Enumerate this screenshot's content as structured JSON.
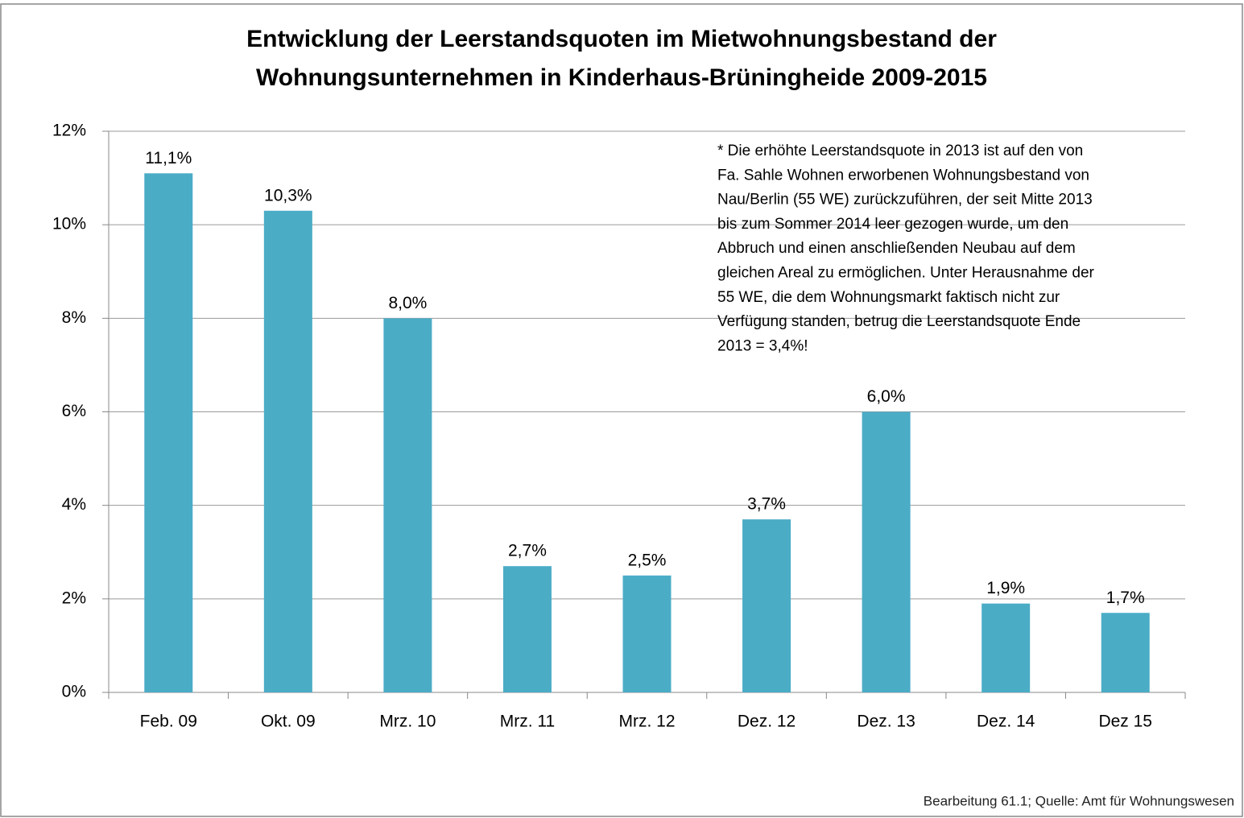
{
  "chart_data": {
    "type": "bar",
    "title": [
      "Entwicklung der Leerstandsquoten im Mietwohnungsbestand der",
      "Wohnungsunternehmen in Kinderhaus-Brüningheide 2009-2015"
    ],
    "categories": [
      "Feb. 09",
      "Okt. 09",
      "Mrz. 10",
      "Mrz. 11",
      "Mrz. 12",
      "Dez. 12",
      "Dez. 13",
      "Dez. 14",
      "Dez 15"
    ],
    "values": [
      11.1,
      10.3,
      8.0,
      2.7,
      2.5,
      3.7,
      6.0,
      1.9,
      1.7
    ],
    "value_labels": [
      "11,1%",
      "10,3%",
      "8,0%",
      "2,7%",
      "2,5%",
      "3,7%",
      "6,0%",
      "1,9%",
      "1,7%"
    ],
    "color": "#4bacc6",
    "ylim": [
      0,
      12
    ],
    "yticks": [
      {
        "value": 0,
        "label": "0%"
      },
      {
        "value": 2,
        "label": "2%"
      },
      {
        "value": 4,
        "label": "4%"
      },
      {
        "value": 6,
        "label": "6%"
      },
      {
        "value": 8,
        "label": "8%"
      },
      {
        "value": 10,
        "label": "10%"
      },
      {
        "value": 12,
        "label": "12%"
      }
    ],
    "grid": true,
    "annotation": [
      "* Die erhöhte Leerstandsquote in 2013 ist auf den von",
      "Fa. Sahle Wohnen erworbenen Wohnungsbestand von",
      "Nau/Berlin (55 WE) zurückzuführen, der seit Mitte 2013",
      "bis zum Sommer 2014 leer gezogen wurde, um den",
      "Abbruch und einen anschließenden Neubau auf dem",
      "gleichen Areal zu ermöglichen. Unter Herausnahme der",
      "55 WE, die dem Wohnungsmarkt faktisch nicht zur",
      "Verfügung standen, betrug die Leerstandsquote Ende",
      "2013 = 3,4%!"
    ],
    "source": "Bearbeitung 61.1; Quelle:  Amt für Wohnungswesen"
  }
}
